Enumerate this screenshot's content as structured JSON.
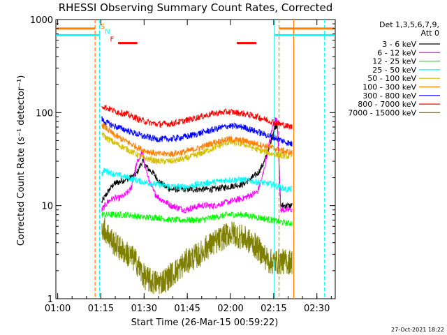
{
  "chart_data": {
    "type": "line",
    "title": "RHESSI Observing Summary Count Rates, Corrected",
    "xlabel": "Start Time (26-Mar-15 00:59:22)",
    "ylabel": "Corrected Count Rate (s⁻¹ detector⁻¹)",
    "x_unit": "minutes after 00:59:22",
    "xlim": [
      0,
      97
    ],
    "ylim": [
      1,
      1000
    ],
    "yscale": "log",
    "x_tick_labels": [
      "01:00",
      "01:15",
      "01:30",
      "01:45",
      "02:00",
      "02:15",
      "02:30"
    ],
    "x_tick_values": [
      0.63,
      15.63,
      30.63,
      45.63,
      60.63,
      75.63,
      90.63
    ],
    "y_tick_labels": [
      "1",
      "10",
      "100",
      "1000"
    ],
    "y_tick_values": [
      1,
      10,
      100,
      1000
    ],
    "legend_header": [
      "Det 1,3,5,6,7,9,",
      "Att 0"
    ],
    "legend_position": "right",
    "timestamp": "27-Oct-2021 18:22",
    "series": [
      {
        "name": "3 - 6 keV",
        "color": "#000000",
        "x": [
          16,
          18,
          20,
          22,
          24,
          26,
          28,
          30,
          32,
          34,
          36,
          38,
          40,
          45,
          50,
          55,
          60,
          65,
          70,
          72,
          74,
          75,
          76,
          77,
          78,
          79,
          80,
          81,
          82
        ],
        "y": [
          11,
          14,
          17,
          18,
          19,
          20,
          22,
          30,
          25,
          22,
          18,
          16,
          15,
          15,
          15,
          15,
          16,
          17,
          22,
          28,
          40,
          55,
          70,
          75,
          10,
          10,
          10,
          10,
          10
        ]
      },
      {
        "name": "6 - 12 keV",
        "color": "#ff00ff",
        "x": [
          16,
          18,
          20,
          22,
          24,
          26,
          28,
          30,
          32,
          34,
          36,
          38,
          40,
          45,
          50,
          55,
          60,
          65,
          70,
          72,
          74,
          75,
          76,
          77,
          78,
          79,
          80,
          81,
          82
        ],
        "y": [
          9,
          11,
          12,
          12,
          13,
          15,
          28,
          37,
          20,
          14,
          12,
          11,
          10,
          9,
          10,
          10,
          11,
          12,
          14,
          22,
          45,
          65,
          85,
          80,
          9,
          9,
          9,
          9,
          9
        ]
      },
      {
        "name": "12 - 25 keV",
        "color": "#00ff00",
        "x": [
          16,
          20,
          25,
          30,
          35,
          40,
          45,
          50,
          55,
          60,
          65,
          70,
          75,
          80,
          82
        ],
        "y": [
          8,
          8,
          8,
          7.5,
          7.5,
          7,
          7,
          7,
          7.5,
          8,
          8,
          7.5,
          7,
          6.5,
          6.5
        ]
      },
      {
        "name": "25 - 50 keV",
        "color": "#00ffff",
        "x": [
          16,
          17,
          20,
          25,
          30,
          35,
          40,
          45,
          50,
          55,
          60,
          65,
          70,
          75,
          80,
          82
        ],
        "y": [
          22,
          24,
          22,
          20,
          18,
          17,
          16,
          16,
          17,
          18,
          19,
          19,
          18,
          17,
          15,
          15
        ]
      },
      {
        "name": "50 - 100 keV",
        "color": "#d4c000",
        "x": [
          16,
          17,
          20,
          25,
          30,
          35,
          40,
          45,
          50,
          55,
          60,
          65,
          70,
          75,
          80,
          82
        ],
        "y": [
          60,
          55,
          48,
          40,
          33,
          30,
          30,
          32,
          36,
          42,
          48,
          46,
          40,
          36,
          34,
          34
        ]
      },
      {
        "name": "100 - 300 keV",
        "color": "#ff8000",
        "x": [
          16,
          17,
          20,
          25,
          30,
          35,
          40,
          45,
          50,
          55,
          60,
          65,
          70,
          75,
          80,
          82
        ],
        "y": [
          75,
          70,
          58,
          48,
          40,
          36,
          36,
          38,
          42,
          48,
          52,
          50,
          46,
          42,
          38,
          37
        ]
      },
      {
        "name": "300 - 800 keV",
        "color": "#0000ff",
        "x": [
          16,
          17,
          20,
          25,
          30,
          35,
          40,
          45,
          50,
          55,
          60,
          65,
          70,
          75,
          80,
          82
        ],
        "y": [
          85,
          80,
          72,
          64,
          56,
          52,
          52,
          55,
          60,
          66,
          72,
          70,
          62,
          55,
          48,
          46
        ]
      },
      {
        "name": "800 - 7000 keV",
        "color": "#ff0000",
        "x": [
          16,
          17,
          20,
          25,
          30,
          35,
          40,
          45,
          50,
          55,
          60,
          65,
          70,
          75,
          80,
          82
        ],
        "y": [
          120,
          115,
          105,
          95,
          82,
          75,
          76,
          82,
          90,
          98,
          102,
          98,
          90,
          80,
          72,
          70
        ]
      },
      {
        "name": "7000 - 15000 keV",
        "color": "#808000",
        "x": [
          16,
          18,
          20,
          22,
          25,
          28,
          30,
          32,
          34,
          36,
          38,
          40,
          42,
          45,
          48,
          50,
          52,
          55,
          58,
          60,
          62,
          65,
          68,
          70,
          72,
          74,
          75,
          76,
          78,
          80,
          82
        ],
        "y": [
          6,
          5,
          4,
          3.5,
          3,
          2.5,
          1.8,
          1.6,
          1.5,
          1.5,
          1.6,
          1.8,
          2,
          2.5,
          2.8,
          3,
          3.5,
          4,
          4.5,
          5,
          5,
          4.5,
          4,
          3.5,
          3,
          2.5,
          2.5,
          2.5,
          2.5,
          2.5,
          2.5
        ]
      }
    ],
    "markers": [
      {
        "label": "S",
        "color": "#ff8000",
        "x": 15.5,
        "y": 800
      },
      {
        "label": "N",
        "color": "#00ffff",
        "x": 17.0,
        "y": 700
      },
      {
        "label": "F",
        "color": "#ff0000",
        "x": 18.8,
        "y": 580
      }
    ],
    "flag_bars": [
      {
        "name": "saa",
        "color": "#ff8000",
        "segments": [
          [
            0,
            13.6
          ],
          [
            77.5,
            97
          ]
        ],
        "y": 800
      },
      {
        "name": "night",
        "color": "#00ffff",
        "segments": [
          [
            0,
            15.2
          ],
          [
            75.9,
            97
          ]
        ],
        "y": 680
      },
      {
        "name": "flare",
        "color": "#ff0000",
        "segments": [
          [
            21.6,
            28.3
          ],
          [
            62.8,
            69.6
          ]
        ],
        "y": 560
      }
    ],
    "vertical_lines": [
      {
        "color": "#ff8000",
        "x": 13.6,
        "dashed": true
      },
      {
        "color": "#00ffff",
        "x": 15.2,
        "dashed": true
      },
      {
        "color": "#00ffff",
        "x": 75.9,
        "dashed": false
      },
      {
        "color": "#ff8000",
        "x": 77.5,
        "dashed": true
      },
      {
        "color": "#ff8000",
        "x": 82.6,
        "dashed": false
      },
      {
        "color": "#00ffff",
        "x": 93.3,
        "dashed": true
      }
    ]
  }
}
